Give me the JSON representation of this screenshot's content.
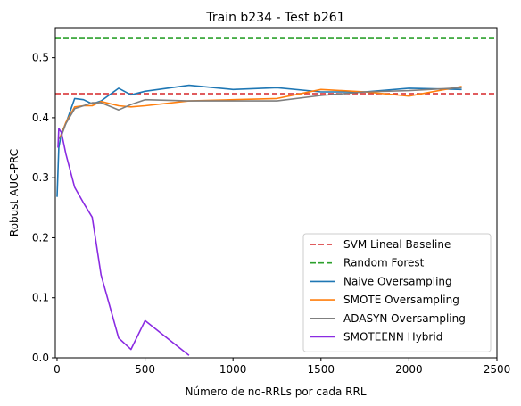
{
  "chart_data": {
    "type": "line",
    "title": "Train b234 - Test b261",
    "xlabel": "Número de no-RRLs por cada RRL",
    "ylabel": "Robust AUC-PRC",
    "xlim": [
      -10,
      2500
    ],
    "ylim": [
      0.0,
      0.55
    ],
    "xticks": [
      0,
      500,
      1000,
      1500,
      2000,
      2500
    ],
    "yticks": [
      0.0,
      0.1,
      0.2,
      0.3,
      0.4,
      0.5
    ],
    "grid": false,
    "legend_position": "lower-right",
    "baselines": [
      {
        "name": "SVM Lineal Baseline",
        "y": 0.44,
        "color": "#d62728",
        "style": "dashed"
      },
      {
        "name": "Random Forest",
        "y": 0.532,
        "color": "#2ca02c",
        "style": "dashed"
      }
    ],
    "series": [
      {
        "name": "Naive Oversampling",
        "color": "#1f77b4",
        "x": [
          0,
          10,
          25,
          50,
          100,
          150,
          200,
          250,
          350,
          420,
          500,
          750,
          1000,
          1250,
          1500,
          1750,
          2000,
          2300
        ],
        "y": [
          0.268,
          0.35,
          0.375,
          0.39,
          0.432,
          0.43,
          0.423,
          0.428,
          0.449,
          0.438,
          0.444,
          0.454,
          0.447,
          0.45,
          0.443,
          0.443,
          0.449,
          0.447
        ]
      },
      {
        "name": "SMOTE Oversampling",
        "color": "#ff7f0e",
        "x": [
          10,
          25,
          50,
          100,
          150,
          200,
          250,
          350,
          420,
          500,
          750,
          1000,
          1250,
          1500,
          1750,
          2000,
          2300
        ],
        "y": [
          0.365,
          0.372,
          0.392,
          0.418,
          0.42,
          0.42,
          0.427,
          0.42,
          0.418,
          0.42,
          0.428,
          0.43,
          0.432,
          0.447,
          0.443,
          0.436,
          0.452
        ]
      },
      {
        "name": "ADASYN Oversampling",
        "color": "#7f7f7f",
        "x": [
          10,
          25,
          50,
          100,
          150,
          200,
          250,
          350,
          420,
          500,
          750,
          1000,
          1250,
          1500,
          1750,
          2000,
          2300
        ],
        "y": [
          0.365,
          0.37,
          0.39,
          0.415,
          0.42,
          0.425,
          0.425,
          0.413,
          0.422,
          0.43,
          0.428,
          0.428,
          0.428,
          0.437,
          0.443,
          0.445,
          0.45
        ]
      },
      {
        "name": "SMOTEENN Hybrid",
        "color": "#8a2be2",
        "x": [
          5,
          10,
          25,
          50,
          100,
          150,
          200,
          250,
          350,
          420,
          500,
          750
        ],
        "y": [
          0.35,
          0.382,
          0.375,
          0.34,
          0.284,
          0.258,
          0.234,
          0.138,
          0.033,
          0.014,
          0.062,
          0.004
        ]
      }
    ]
  }
}
